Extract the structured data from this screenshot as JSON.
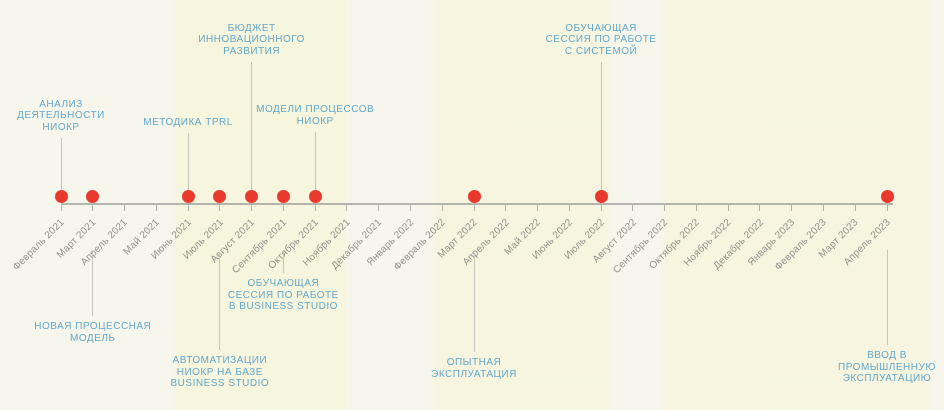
{
  "colors": {
    "background": "#f7f6ed",
    "axis_line": "#b5b5af",
    "stem_line": "#c4c4be",
    "event_dot": "#e8392c",
    "event_label_text": "#61a7cb",
    "month_label_text": "#90918a"
  },
  "timeline": {
    "months": [
      "Февраль 2021",
      "Март 2021",
      "Апрель 2021",
      "Май 2021",
      "Июнь 2021",
      "Июль 2021",
      "Август 2021",
      "Сентябрь 2021",
      "Октябрь 2021",
      "Ноябрь 2021",
      "Декабрь 2021",
      "Январь 2022",
      "Февраль 2022",
      "Март 2022",
      "Апрель 2022",
      "Май 2022",
      "Июнь 2022",
      "Июль 2022",
      "Август 2022",
      "Сентябрь 2022",
      "Октябрь 2022",
      "Ноябрь 2022",
      "Декабрь 2022",
      "Январь 2023",
      "Февраль 2023",
      "Март 2023",
      "Апрель 2023"
    ],
    "events": [
      {
        "label": "АНАЛИЗ\nДЕЯТЕЛЬНОСТИ\nНИОКР",
        "month": "Февраль 2021",
        "side": "above",
        "stem_y": [
          138,
          191
        ]
      },
      {
        "label": "НОВАЯ ПРОЦЕССНАЯ\nМОДЕЛЬ",
        "month": "Март 2021",
        "side": "below",
        "stem_y": [
          252,
          316
        ]
      },
      {
        "label": "МЕТОДИКА TPRL",
        "month": "Июнь 2021",
        "side": "above",
        "stem_y": [
          133,
          191
        ]
      },
      {
        "label": "АВТОМАТИЗАЦИИ\nНИОКР НА БАЗЕ\nBUSINESS STUDIO",
        "month": "Июль 2021",
        "side": "below",
        "stem_y": [
          252,
          350
        ]
      },
      {
        "label": "БЮДЖЕТ\nИННОВАЦИОННОГО\nРАЗВИТИЯ",
        "month": "Август 2021",
        "side": "above",
        "stem_y": [
          62,
          191
        ]
      },
      {
        "label": "ОБУЧАЮЩАЯ\nСЕССИЯ ПО РАБОТЕ\nВ BUSINESS STUDIO",
        "month": "Сентябрь 2021",
        "side": "below",
        "stem_y": [
          252,
          273
        ]
      },
      {
        "label": "МОДЕЛИ ПРОЦЕССОВ\nНИОКР",
        "month": "Октябрь 2021",
        "side": "above",
        "stem_y": [
          132,
          191
        ]
      },
      {
        "label": "ОПЫТНАЯ\nЭКСПЛУАТАЦИЯ",
        "month": "Март 2022",
        "side": "below",
        "stem_y": [
          253,
          352
        ]
      },
      {
        "label": "ОБУЧАЮЩАЯ\nСЕССИЯ ПО РАБОТЕ\nС СИСТЕМОЙ",
        "month": "Июль 2022",
        "side": "above",
        "stem_y": [
          62,
          191
        ]
      },
      {
        "label": "ВВОД В\nПРОМЫШЛЕННУЮ\nЭКСПЛУАТАЦИЮ",
        "month": "Апрель 2023",
        "side": "below",
        "stem_y": [
          250,
          345
        ]
      }
    ]
  }
}
